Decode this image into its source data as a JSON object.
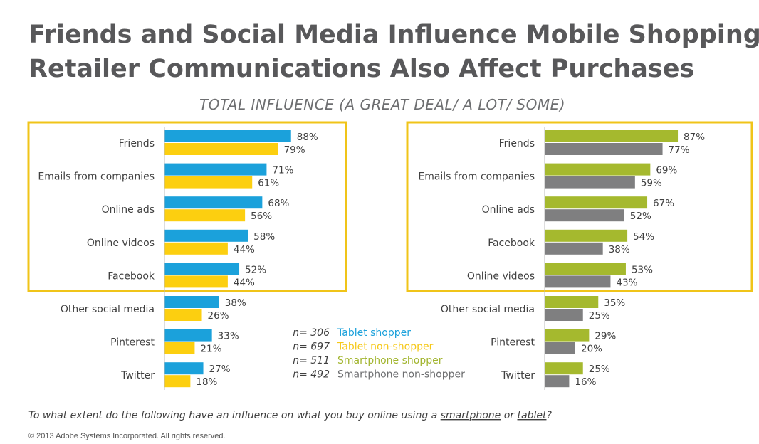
{
  "title_line1": "Friends and Social Media Influence Mobile Shopping,",
  "title_line2": "Retailer Communications Also Affect Purchases",
  "subtitle": "TOTAL INFLUENCE (A GREAT DEAL/ A LOT/ SOME)",
  "question": {
    "before": "To what extent do the following have an influence on what you buy online using a ",
    "word1": "smartphone",
    "mid": " or ",
    "word2": "tablet",
    "after": "?"
  },
  "copyright": "© 2013 Adobe Systems Incorporated. All rights reserved.",
  "legend": [
    {
      "n": "n= 306",
      "label": "Tablet shopper",
      "color": "#1ba1db"
    },
    {
      "n": "n= 697",
      "label": "Tablet non-shopper",
      "color": "#f6c818"
    },
    {
      "n": "n= 511",
      "label": "Smartphone shopper",
      "color": "#a2b52f"
    },
    {
      "n": "n= 492",
      "label": "Smartphone non-shopper",
      "color": "#6d6e70"
    }
  ],
  "highlight_color": "#f0c419",
  "chart_data": [
    {
      "type": "bar",
      "orientation": "horizontal",
      "categories": [
        "Friends",
        "Emails from companies",
        "Online ads",
        "Online videos",
        "Facebook",
        "Other social media",
        "Pinterest",
        "Twitter"
      ],
      "series": [
        {
          "name": "Tablet shopper",
          "values": [
            88,
            71,
            68,
            58,
            52,
            38,
            33,
            27
          ],
          "color": "#1ba1db"
        },
        {
          "name": "Tablet non-shopper",
          "values": [
            79,
            61,
            56,
            44,
            44,
            26,
            21,
            18
          ],
          "color": "#fccf10"
        }
      ],
      "value_suffix": "%",
      "highlighted_top": 5
    },
    {
      "type": "bar",
      "orientation": "horizontal",
      "categories": [
        "Friends",
        "Emails from companies",
        "Online ads",
        "Facebook",
        "Online videos",
        "Other social media",
        "Pinterest",
        "Twitter"
      ],
      "series": [
        {
          "name": "Smartphone shopper",
          "values": [
            87,
            69,
            67,
            54,
            53,
            35,
            29,
            25
          ],
          "color": "#a5b92e"
        },
        {
          "name": "Smartphone non-shopper",
          "values": [
            77,
            59,
            52,
            38,
            43,
            25,
            20,
            16
          ],
          "color": "#7f7f80"
        }
      ],
      "value_suffix": "%",
      "highlighted_top": 5
    }
  ]
}
